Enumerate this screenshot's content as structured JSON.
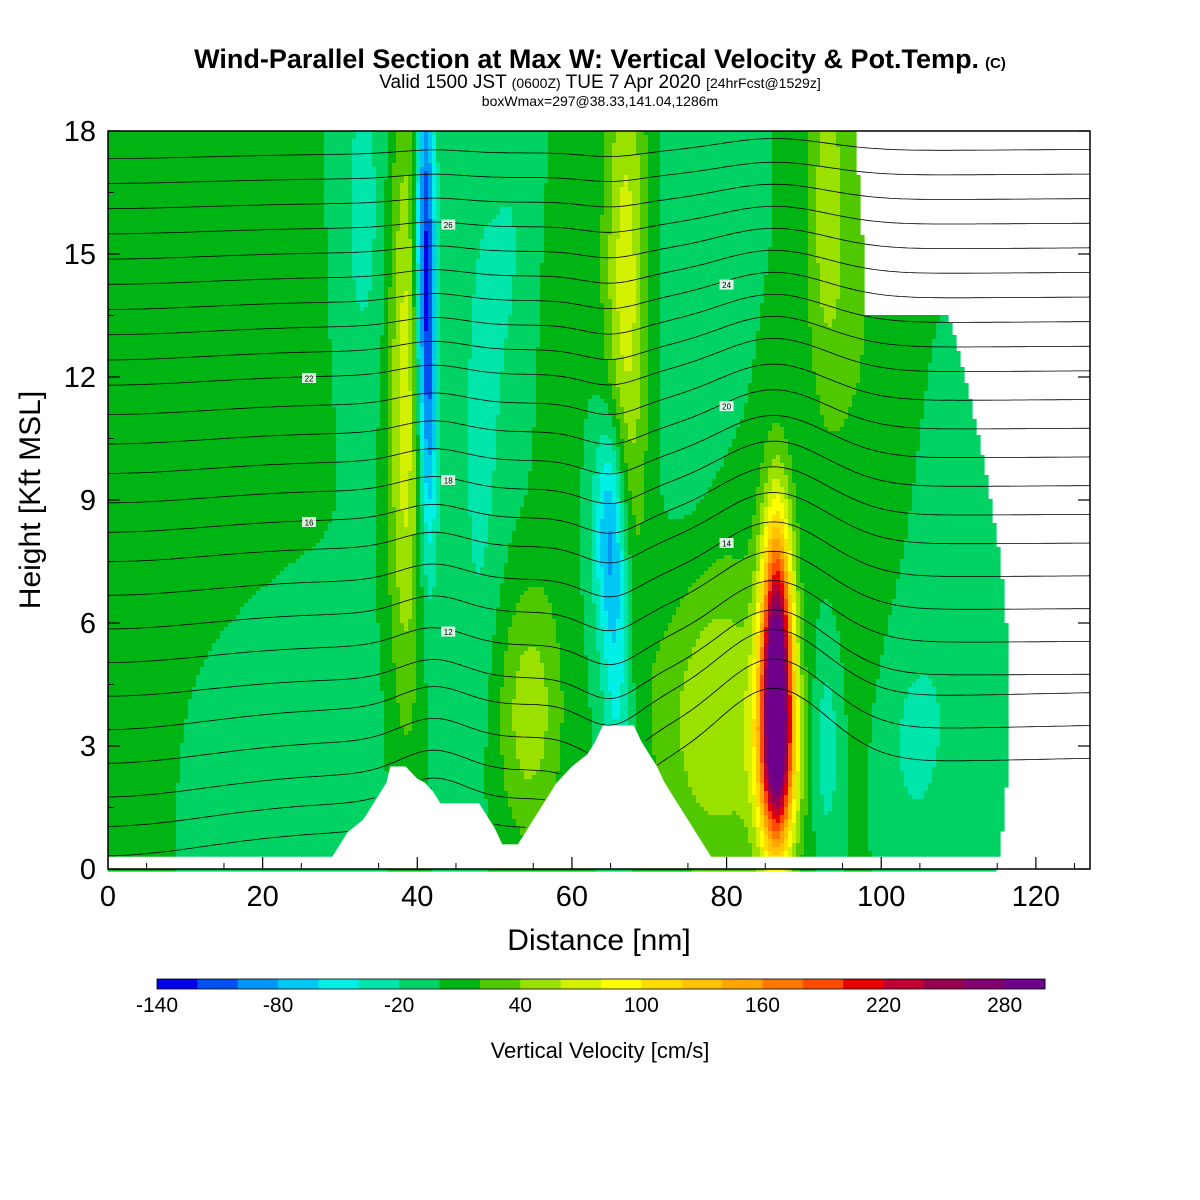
{
  "header": {
    "title": "Wind-Parallel Section at Max W: Vertical Velocity & Pot.Temp.",
    "copyright": "(C)",
    "valid_prefix": "Valid 1500 JST",
    "valid_utc": "(0600Z)",
    "valid_date": "TUE 7 Apr 2020",
    "forecast": "[24hrFcst@1529z]",
    "box_info": "boxWmax=297@38.33,141.04,1286m"
  },
  "chart_data": {
    "type": "heatmap",
    "xlabel": "Distance [nm]",
    "ylabel": "Height [Kft MSL]",
    "xlim": [
      0,
      127
    ],
    "ylim": [
      0,
      18
    ],
    "x_ticks": [
      0,
      20,
      40,
      60,
      80,
      100,
      120
    ],
    "y_ticks": [
      0,
      3,
      6,
      9,
      12,
      15,
      18
    ],
    "colorbar": {
      "label": "Vertical Velocity [cm/s]",
      "levels": [
        -140,
        -120,
        -100,
        -80,
        -60,
        -40,
        -20,
        0,
        20,
        40,
        60,
        80,
        100,
        120,
        140,
        160,
        180,
        200,
        220,
        240,
        260,
        280,
        300
      ],
      "tick_labels": [
        "-140",
        "-80",
        "-20",
        "40",
        "100",
        "160",
        "220",
        "280"
      ],
      "colors": [
        "#0000e6",
        "#0050f0",
        "#0096f5",
        "#00c8f5",
        "#00f0e6",
        "#00e6aa",
        "#00d264",
        "#00b414",
        "#50c800",
        "#9be100",
        "#d2f000",
        "#ffff00",
        "#ffdc00",
        "#ffc300",
        "#ffa500",
        "#ff7800",
        "#ff4b00",
        "#e60000",
        "#be0032",
        "#960050",
        "#82006e",
        "#6e008c"
      ]
    },
    "background_level": 0,
    "features": [
      {
        "x": 86.5,
        "y": 4.8,
        "sx": 1.4,
        "sy": 2.6,
        "w": 297
      },
      {
        "x": 86.5,
        "y": 2.6,
        "sx": 2.0,
        "sy": 1.7,
        "w": 110
      },
      {
        "x": 78.5,
        "y": 3.8,
        "sx": 5.5,
        "sy": 2.8,
        "w": 62
      },
      {
        "x": 41.0,
        "y": 15.5,
        "sx": 0.9,
        "sy": 3.3,
        "w": -115
      },
      {
        "x": 41.5,
        "y": 11.0,
        "sx": 0.9,
        "sy": 3.0,
        "w": -70
      },
      {
        "x": 38.5,
        "y": 11.5,
        "sx": 1.6,
        "sy": 5.5,
        "w": 72
      },
      {
        "x": 65.0,
        "y": 8.3,
        "sx": 1.5,
        "sy": 2.0,
        "w": -90
      },
      {
        "x": 66.0,
        "y": 4.5,
        "sx": 1.4,
        "sy": 2.5,
        "w": -50
      },
      {
        "x": 67.0,
        "y": 14.0,
        "sx": 2.0,
        "sy": 5.0,
        "w": 72
      },
      {
        "x": 54.5,
        "y": 3.8,
        "sx": 3.0,
        "sy": 2.2,
        "w": 52
      },
      {
        "x": 93.0,
        "y": 3.0,
        "sx": 1.2,
        "sy": 1.8,
        "w": -35
      },
      {
        "x": 93.0,
        "y": 16.0,
        "sx": 2.0,
        "sy": 3.5,
        "w": 48
      },
      {
        "x": 33.0,
        "y": 16.0,
        "sx": 2.5,
        "sy": 3.5,
        "w": -28
      },
      {
        "x": 53.0,
        "y": 15.0,
        "sx": 3.0,
        "sy": 4.0,
        "w": -22
      },
      {
        "x": 48.0,
        "y": 10.0,
        "sx": 2.0,
        "sy": 5.0,
        "w": -24
      },
      {
        "x": 57.0,
        "y": 13.0,
        "sx": 2.5,
        "sy": 4.0,
        "w": 15
      },
      {
        "x": 75.0,
        "y": 13.0,
        "sx": 3.5,
        "sy": 6.0,
        "w": -15
      },
      {
        "x": 104.0,
        "y": 3.0,
        "sx": 3.0,
        "sy": 2.0,
        "w": -22
      },
      {
        "x": 98.0,
        "y": 13.0,
        "sx": 3.0,
        "sy": 6.0,
        "w": 18
      },
      {
        "x": 12.0,
        "y": 13.0,
        "sx": 10.0,
        "sy": 6.0,
        "w": 18
      },
      {
        "x": 120.0,
        "y": 8.0,
        "sx": 4.0,
        "sy": 6.0,
        "w": 18
      },
      {
        "x": 2.0,
        "y": 4.5,
        "sx": 4.0,
        "sy": 4.0,
        "w": 16
      },
      {
        "x": 22.0,
        "y": 3.0,
        "sx": 9.0,
        "sy": 3.0,
        "w": -18
      },
      {
        "x": 112.0,
        "y": 5.0,
        "sx": 5.0,
        "sy": 3.0,
        "w": -16
      }
    ],
    "terrain": [
      [
        0,
        0.3
      ],
      [
        29,
        0.3
      ],
      [
        30,
        0.6
      ],
      [
        31,
        0.9
      ],
      [
        33,
        1.2
      ],
      [
        34,
        1.5
      ],
      [
        35,
        1.8
      ],
      [
        36,
        2.1
      ],
      [
        36.5,
        2.5
      ],
      [
        38.5,
        2.5
      ],
      [
        40,
        2.2
      ],
      [
        41,
        2.1
      ],
      [
        42,
        1.9
      ],
      [
        43,
        1.6
      ],
      [
        48,
        1.6
      ],
      [
        49,
        1.3
      ],
      [
        50,
        1.0
      ],
      [
        51,
        0.6
      ],
      [
        53,
        0.6
      ],
      [
        54,
        0.9
      ],
      [
        55,
        1.2
      ],
      [
        56,
        1.5
      ],
      [
        57,
        1.8
      ],
      [
        58,
        2.1
      ],
      [
        60,
        2.5
      ],
      [
        62,
        2.8
      ],
      [
        63,
        3.1
      ],
      [
        64,
        3.5
      ],
      [
        68,
        3.5
      ],
      [
        69,
        3.1
      ],
      [
        71,
        2.5
      ],
      [
        72,
        2.1
      ],
      [
        73,
        1.8
      ],
      [
        74,
        1.5
      ],
      [
        75,
        1.2
      ],
      [
        76,
        0.9
      ],
      [
        77,
        0.6
      ],
      [
        78,
        0.3
      ],
      [
        127,
        0.3
      ]
    ],
    "isentropes": [
      {
        "y0": 0.8,
        "x_end": 60
      },
      {
        "y0": 1.5,
        "x_end": 70
      },
      {
        "y0": 2.2
      },
      {
        "y0": 3.0
      },
      {
        "y0": 3.8
      },
      {
        "y0": 4.6
      },
      {
        "y0": 5.4,
        "label": "12"
      },
      {
        "y0": 6.2
      },
      {
        "y0": 7.0,
        "label": "14"
      },
      {
        "y0": 7.8
      },
      {
        "y0": 8.5,
        "label": "16"
      },
      {
        "y0": 9.2,
        "label": "18"
      },
      {
        "y0": 9.9
      },
      {
        "y0": 10.6,
        "label": "20"
      },
      {
        "y0": 11.3
      },
      {
        "y0": 12.0,
        "label": "22"
      },
      {
        "y0": 12.6
      },
      {
        "y0": 13.2
      },
      {
        "y0": 13.8,
        "label": "24"
      },
      {
        "y0": 14.4
      },
      {
        "y0": 15.0
      },
      {
        "y0": 15.6,
        "label": "26"
      },
      {
        "y0": 16.2
      },
      {
        "y0": 16.8
      },
      {
        "y0": 17.4
      }
    ]
  }
}
